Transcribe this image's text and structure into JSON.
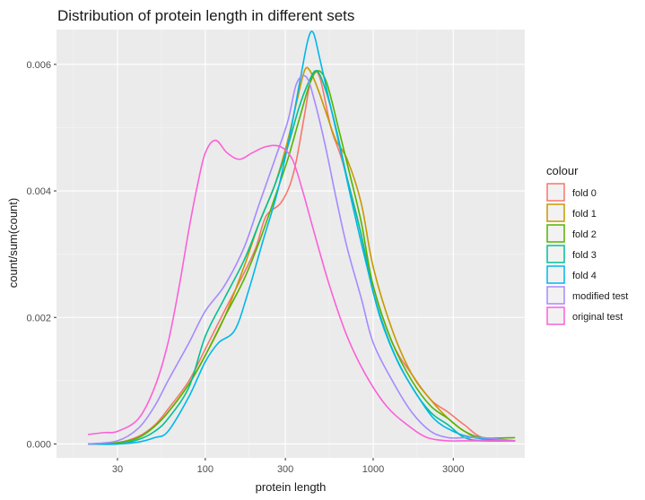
{
  "chart_data": {
    "type": "line",
    "title": "Distribution of protein length in different sets",
    "xlabel": "protein length",
    "ylabel": "count/sum(count)",
    "x_scale": "log10",
    "xlim": [
      13,
      8000
    ],
    "ylim": [
      -0.00022,
      0.00655
    ],
    "x_ticks": [
      30,
      100,
      300,
      1000,
      3000
    ],
    "x_tick_labels": [
      "30",
      "100",
      "300",
      "1000",
      "3000"
    ],
    "y_ticks": [
      0,
      0.002,
      0.004,
      0.006
    ],
    "y_tick_labels": [
      "0.000",
      "0.002",
      "0.004",
      "0.006"
    ],
    "grid": true,
    "legend": {
      "title": "colour",
      "position": "right"
    },
    "series": [
      {
        "name": "fold 0",
        "color": "#F8766D",
        "points": [
          [
            20,
            0
          ],
          [
            30,
            2e-05
          ],
          [
            40,
            0.00012
          ],
          [
            50,
            0.0003
          ],
          [
            60,
            0.00055
          ],
          [
            80,
            0.001
          ],
          [
            100,
            0.0015
          ],
          [
            130,
            0.0021
          ],
          [
            170,
            0.0027
          ],
          [
            200,
            0.0031
          ],
          [
            230,
            0.0036
          ],
          [
            280,
            0.0038
          ],
          [
            320,
            0.0041
          ],
          [
            350,
            0.0045
          ],
          [
            390,
            0.0052
          ],
          [
            430,
            0.0058
          ],
          [
            480,
            0.0058
          ],
          [
            560,
            0.005
          ],
          [
            650,
            0.0045
          ],
          [
            800,
            0.0036
          ],
          [
            1000,
            0.0025
          ],
          [
            1300,
            0.0016
          ],
          [
            1700,
            0.0011
          ],
          [
            2200,
            0.0007
          ],
          [
            2800,
            0.0005
          ],
          [
            3500,
            0.0003
          ],
          [
            4500,
            0.0001
          ],
          [
            7000,
            5e-05
          ]
        ]
      },
      {
        "name": "fold 1",
        "color": "#C49A00",
        "points": [
          [
            20,
            0
          ],
          [
            30,
            2e-05
          ],
          [
            40,
            0.0001
          ],
          [
            50,
            0.00028
          ],
          [
            60,
            0.0005
          ],
          [
            80,
            0.00095
          ],
          [
            100,
            0.0014
          ],
          [
            130,
            0.002
          ],
          [
            170,
            0.0028
          ],
          [
            210,
            0.0035
          ],
          [
            260,
            0.0041
          ],
          [
            310,
            0.0048
          ],
          [
            350,
            0.0054
          ],
          [
            390,
            0.0059
          ],
          [
            420,
            0.0059
          ],
          [
            470,
            0.0056
          ],
          [
            530,
            0.0052
          ],
          [
            600,
            0.0048
          ],
          [
            700,
            0.0045
          ],
          [
            850,
            0.0038
          ],
          [
            1000,
            0.0028
          ],
          [
            1300,
            0.0018
          ],
          [
            1700,
            0.0011
          ],
          [
            2200,
            0.0007
          ],
          [
            2800,
            0.0004
          ],
          [
            3500,
            0.0002
          ],
          [
            4500,
            7e-05
          ],
          [
            7000,
            5e-05
          ]
        ]
      },
      {
        "name": "fold 2",
        "color": "#53B400",
        "points": [
          [
            20,
            0
          ],
          [
            30,
            2e-05
          ],
          [
            40,
            0.0001
          ],
          [
            50,
            0.00028
          ],
          [
            60,
            0.0005
          ],
          [
            80,
            0.00095
          ],
          [
            100,
            0.0014
          ],
          [
            130,
            0.002
          ],
          [
            170,
            0.0026
          ],
          [
            210,
            0.0032
          ],
          [
            260,
            0.0039
          ],
          [
            310,
            0.0045
          ],
          [
            360,
            0.0051
          ],
          [
            420,
            0.0057
          ],
          [
            470,
            0.0059
          ],
          [
            530,
            0.0057
          ],
          [
            620,
            0.005
          ],
          [
            720,
            0.0043
          ],
          [
            850,
            0.0035
          ],
          [
            1000,
            0.0025
          ],
          [
            1300,
            0.0016
          ],
          [
            1700,
            0.001
          ],
          [
            2200,
            0.0006
          ],
          [
            2800,
            0.0004
          ],
          [
            3500,
            0.0002
          ],
          [
            4500,
            0.0001
          ],
          [
            7000,
            0.0001
          ]
        ]
      },
      {
        "name": "fold 3",
        "color": "#00C094",
        "points": [
          [
            20,
            0
          ],
          [
            30,
            0
          ],
          [
            40,
            7e-05
          ],
          [
            50,
            0.0002
          ],
          [
            60,
            0.0004
          ],
          [
            80,
            0.0009
          ],
          [
            100,
            0.0017
          ],
          [
            130,
            0.0023
          ],
          [
            170,
            0.0029
          ],
          [
            210,
            0.0035
          ],
          [
            260,
            0.0041
          ],
          [
            310,
            0.0047
          ],
          [
            360,
            0.0053
          ],
          [
            410,
            0.0057
          ],
          [
            460,
            0.0059
          ],
          [
            520,
            0.0056
          ],
          [
            600,
            0.005
          ],
          [
            700,
            0.0042
          ],
          [
            850,
            0.0033
          ],
          [
            1000,
            0.0024
          ],
          [
            1300,
            0.0015
          ],
          [
            1700,
            0.0009
          ],
          [
            2200,
            0.0005
          ],
          [
            2800,
            0.0003
          ],
          [
            3500,
            0.0001
          ],
          [
            4500,
            5e-05
          ],
          [
            7000,
            5e-05
          ]
        ]
      },
      {
        "name": "fold 4",
        "color": "#00B6EB",
        "points": [
          [
            20,
            0
          ],
          [
            30,
            0
          ],
          [
            40,
            3e-05
          ],
          [
            50,
            0.0001
          ],
          [
            60,
            0.0002
          ],
          [
            80,
            0.00075
          ],
          [
            100,
            0.0013
          ],
          [
            120,
            0.0016
          ],
          [
            150,
            0.0018
          ],
          [
            180,
            0.0024
          ],
          [
            220,
            0.0032
          ],
          [
            270,
            0.004
          ],
          [
            320,
            0.0049
          ],
          [
            370,
            0.0058
          ],
          [
            410,
            0.0064
          ],
          [
            440,
            0.0065
          ],
          [
            480,
            0.0061
          ],
          [
            540,
            0.0055
          ],
          [
            620,
            0.0048
          ],
          [
            750,
            0.0038
          ],
          [
            900,
            0.0029
          ],
          [
            1100,
            0.002
          ],
          [
            1400,
            0.0013
          ],
          [
            1800,
            0.0008
          ],
          [
            2300,
            0.0004
          ],
          [
            3000,
            0.0002
          ],
          [
            4000,
            0.0001
          ],
          [
            7000,
            5e-05
          ]
        ]
      },
      {
        "name": "modified test",
        "color": "#A58AFF",
        "points": [
          [
            20,
            0
          ],
          [
            30,
            5e-05
          ],
          [
            40,
            0.00025
          ],
          [
            50,
            0.0006
          ],
          [
            60,
            0.001
          ],
          [
            80,
            0.0016
          ],
          [
            100,
            0.0021
          ],
          [
            130,
            0.0025
          ],
          [
            170,
            0.0031
          ],
          [
            210,
            0.0038
          ],
          [
            260,
            0.0045
          ],
          [
            310,
            0.0051
          ],
          [
            350,
            0.0057
          ],
          [
            400,
            0.0058
          ],
          [
            450,
            0.0054
          ],
          [
            520,
            0.0047
          ],
          [
            600,
            0.0039
          ],
          [
            700,
            0.0031
          ],
          [
            850,
            0.0023
          ],
          [
            1000,
            0.0016
          ],
          [
            1300,
            0.001
          ],
          [
            1700,
            0.0005
          ],
          [
            2200,
            0.0002
          ],
          [
            2800,
            0.0001
          ],
          [
            3500,
            0.0001
          ],
          [
            4500,
            0.0001
          ],
          [
            7000,
            5e-05
          ]
        ]
      },
      {
        "name": "original test",
        "color": "#FB61D7",
        "points": [
          [
            20,
            0.00015
          ],
          [
            25,
            0.00018
          ],
          [
            30,
            0.0002
          ],
          [
            40,
            0.0004
          ],
          [
            50,
            0.0009
          ],
          [
            60,
            0.0016
          ],
          [
            70,
            0.0025
          ],
          [
            80,
            0.0034
          ],
          [
            90,
            0.0041
          ],
          [
            100,
            0.0046
          ],
          [
            115,
            0.0048
          ],
          [
            135,
            0.0046
          ],
          [
            160,
            0.0045
          ],
          [
            190,
            0.0046
          ],
          [
            230,
            0.0047
          ],
          [
            280,
            0.0047
          ],
          [
            330,
            0.0045
          ],
          [
            380,
            0.004
          ],
          [
            450,
            0.0033
          ],
          [
            550,
            0.0025
          ],
          [
            700,
            0.0017
          ],
          [
            900,
            0.0011
          ],
          [
            1200,
            0.0006
          ],
          [
            1600,
            0.0003
          ],
          [
            2100,
            0.0001
          ],
          [
            2800,
            5e-05
          ],
          [
            3500,
            5e-05
          ],
          [
            7000,
            5e-05
          ]
        ]
      }
    ]
  }
}
